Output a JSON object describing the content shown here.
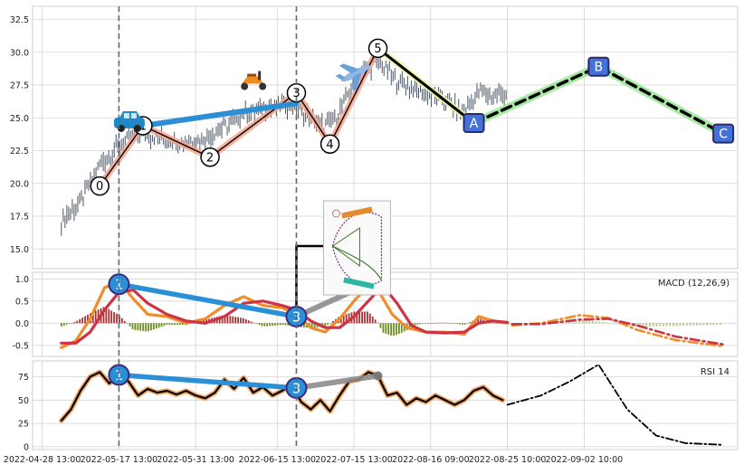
{
  "chart_data": [
    {
      "panel": "price",
      "type": "candlestick",
      "title": "",
      "ylim": [
        13.5,
        33.5
      ],
      "yticks": [
        "15.0",
        "17.5",
        "20.0",
        "22.5",
        "25.0",
        "27.5",
        "30.0",
        "32.5"
      ],
      "grid": true,
      "price_path": [
        {
          "d": 0,
          "v": 17.2
        },
        {
          "d": 4,
          "v": 18.5
        },
        {
          "d": 8,
          "v": 21.5
        },
        {
          "d": 12,
          "v": 22.8
        },
        {
          "d": 16,
          "v": 23.8
        },
        {
          "d": 22,
          "v": 23.3
        },
        {
          "d": 26,
          "v": 23.2
        },
        {
          "d": 30,
          "v": 23.5
        },
        {
          "d": 34,
          "v": 24.3
        },
        {
          "d": 38,
          "v": 25.3
        },
        {
          "d": 42,
          "v": 25.7
        },
        {
          "d": 48,
          "v": 26.0
        },
        {
          "d": 51,
          "v": 25.3
        },
        {
          "d": 54,
          "v": 24.3
        },
        {
          "d": 57,
          "v": 24.8
        },
        {
          "d": 60,
          "v": 27.0
        },
        {
          "d": 63,
          "v": 28.5
        },
        {
          "d": 66,
          "v": 29.3
        },
        {
          "d": 70,
          "v": 27.8
        },
        {
          "d": 75,
          "v": 27.0
        },
        {
          "d": 80,
          "v": 26.3
        },
        {
          "d": 84,
          "v": 25.4
        },
        {
          "d": 87,
          "v": 27.0
        },
        {
          "d": 90,
          "v": 26.7
        },
        {
          "d": 93,
          "v": 26.9
        }
      ],
      "elliott_wave": {
        "labels": [
          "0",
          "1",
          "2",
          "3",
          "4",
          "5"
        ],
        "points": [
          {
            "d": 8,
            "v": 19.8
          },
          {
            "d": 17,
            "v": 24.4
          },
          {
            "d": 31,
            "v": 22.0
          },
          {
            "d": 49,
            "v": 26.9
          },
          {
            "d": 56,
            "v": 23.0
          },
          {
            "d": 66,
            "v": 30.3
          }
        ]
      },
      "abc_projection": {
        "labels": [
          "A",
          "B",
          "C"
        ],
        "points": [
          {
            "d": 86,
            "v": 24.6
          },
          {
            "d": 112,
            "v": 28.9
          },
          {
            "d": 138,
            "v": 23.8
          }
        ]
      },
      "trend_line": [
        {
          "d": 17,
          "v": 24.4
        },
        {
          "d": 49,
          "v": 26.1
        }
      ],
      "icons": [
        "car-icon",
        "scooter-icon",
        "airplane-icon",
        "track-diagram-icon"
      ]
    },
    {
      "panel": "macd",
      "type": "line",
      "legend": "MACD (12,26,9)",
      "ylim": [
        -0.75,
        1.15
      ],
      "yticks": [
        "-0.5",
        "0.0",
        "0.5",
        "1.0"
      ],
      "divergence": {
        "labels": [
          "1",
          "3"
        ],
        "points": [
          {
            "d": 12,
            "v": 0.88
          },
          {
            "d": 49,
            "v": 0.15
          }
        ],
        "extension": [
          {
            "d": 49,
            "v": 0.15
          },
          {
            "d": 66,
            "v": 0.98
          }
        ]
      },
      "macd_line": [
        {
          "d": 0,
          "v": -0.55
        },
        {
          "d": 3,
          "v": -0.4
        },
        {
          "d": 6,
          "v": 0.1
        },
        {
          "d": 9,
          "v": 0.8
        },
        {
          "d": 12,
          "v": 0.95
        },
        {
          "d": 15,
          "v": 0.55
        },
        {
          "d": 18,
          "v": 0.2
        },
        {
          "d": 22,
          "v": 0.15
        },
        {
          "d": 26,
          "v": 0.0
        },
        {
          "d": 30,
          "v": 0.1
        },
        {
          "d": 34,
          "v": 0.4
        },
        {
          "d": 38,
          "v": 0.6
        },
        {
          "d": 42,
          "v": 0.4
        },
        {
          "d": 46,
          "v": 0.35
        },
        {
          "d": 49,
          "v": 0.2
        },
        {
          "d": 52,
          "v": -0.1
        },
        {
          "d": 55,
          "v": -0.2
        },
        {
          "d": 58,
          "v": 0.1
        },
        {
          "d": 61,
          "v": 0.5
        },
        {
          "d": 64,
          "v": 0.85
        },
        {
          "d": 66,
          "v": 0.75
        },
        {
          "d": 69,
          "v": 0.2
        },
        {
          "d": 72,
          "v": -0.1
        },
        {
          "d": 76,
          "v": -0.2
        },
        {
          "d": 80,
          "v": -0.2
        },
        {
          "d": 84,
          "v": -0.25
        },
        {
          "d": 87,
          "v": 0.15
        },
        {
          "d": 90,
          "v": 0.05
        },
        {
          "d": 93,
          "v": 0.0
        }
      ],
      "signal_line": [
        {
          "d": 0,
          "v": -0.45
        },
        {
          "d": 3,
          "v": -0.45
        },
        {
          "d": 6,
          "v": -0.2
        },
        {
          "d": 9,
          "v": 0.3
        },
        {
          "d": 12,
          "v": 0.7
        },
        {
          "d": 15,
          "v": 0.75
        },
        {
          "d": 18,
          "v": 0.45
        },
        {
          "d": 22,
          "v": 0.2
        },
        {
          "d": 26,
          "v": 0.05
        },
        {
          "d": 30,
          "v": 0.0
        },
        {
          "d": 34,
          "v": 0.15
        },
        {
          "d": 38,
          "v": 0.45
        },
        {
          "d": 42,
          "v": 0.5
        },
        {
          "d": 46,
          "v": 0.4
        },
        {
          "d": 49,
          "v": 0.3
        },
        {
          "d": 52,
          "v": 0.05
        },
        {
          "d": 55,
          "v": -0.1
        },
        {
          "d": 58,
          "v": -0.1
        },
        {
          "d": 61,
          "v": 0.15
        },
        {
          "d": 64,
          "v": 0.5
        },
        {
          "d": 67,
          "v": 0.85
        },
        {
          "d": 70,
          "v": 0.45
        },
        {
          "d": 73,
          "v": -0.05
        },
        {
          "d": 76,
          "v": -0.2
        },
        {
          "d": 80,
          "v": -0.22
        },
        {
          "d": 84,
          "v": -0.2
        },
        {
          "d": 87,
          "v": 0.0
        },
        {
          "d": 90,
          "v": 0.05
        },
        {
          "d": 93,
          "v": 0.02
        }
      ],
      "projection_macd": [
        {
          "d": 94,
          "v": -0.05
        },
        {
          "d": 100,
          "v": 0.0
        },
        {
          "d": 108,
          "v": 0.18
        },
        {
          "d": 114,
          "v": 0.12
        },
        {
          "d": 120,
          "v": -0.15
        },
        {
          "d": 128,
          "v": -0.38
        },
        {
          "d": 138,
          "v": -0.52
        }
      ],
      "projection_signal": [
        {
          "d": 94,
          "v": -0.02
        },
        {
          "d": 100,
          "v": -0.02
        },
        {
          "d": 108,
          "v": 0.08
        },
        {
          "d": 114,
          "v": 0.1
        },
        {
          "d": 120,
          "v": -0.05
        },
        {
          "d": 128,
          "v": -0.3
        },
        {
          "d": 138,
          "v": -0.48
        }
      ]
    },
    {
      "panel": "rsi",
      "type": "line",
      "legend": "RSI 14",
      "ylim": [
        -3,
        92
      ],
      "yticks": [
        "0",
        "25",
        "50",
        "75"
      ],
      "divergence": {
        "labels": [
          "1",
          "3"
        ],
        "points": [
          {
            "d": 12,
            "v": 77
          },
          {
            "d": 49,
            "v": 63
          }
        ],
        "extension": [
          {
            "d": 49,
            "v": 63
          },
          {
            "d": 66,
            "v": 76
          }
        ]
      },
      "rsi_line": [
        {
          "d": 0,
          "v": 28
        },
        {
          "d": 2,
          "v": 40
        },
        {
          "d": 4,
          "v": 60
        },
        {
          "d": 6,
          "v": 75
        },
        {
          "d": 8,
          "v": 80
        },
        {
          "d": 10,
          "v": 68
        },
        {
          "d": 12,
          "v": 78
        },
        {
          "d": 14,
          "v": 70
        },
        {
          "d": 16,
          "v": 55
        },
        {
          "d": 18,
          "v": 62
        },
        {
          "d": 20,
          "v": 58
        },
        {
          "d": 22,
          "v": 60
        },
        {
          "d": 24,
          "v": 56
        },
        {
          "d": 26,
          "v": 60
        },
        {
          "d": 28,
          "v": 55
        },
        {
          "d": 30,
          "v": 52
        },
        {
          "d": 32,
          "v": 58
        },
        {
          "d": 34,
          "v": 72
        },
        {
          "d": 36,
          "v": 62
        },
        {
          "d": 38,
          "v": 74
        },
        {
          "d": 40,
          "v": 58
        },
        {
          "d": 42,
          "v": 64
        },
        {
          "d": 44,
          "v": 55
        },
        {
          "d": 46,
          "v": 60
        },
        {
          "d": 48,
          "v": 66
        },
        {
          "d": 50,
          "v": 48
        },
        {
          "d": 52,
          "v": 40
        },
        {
          "d": 54,
          "v": 50
        },
        {
          "d": 56,
          "v": 38
        },
        {
          "d": 58,
          "v": 55
        },
        {
          "d": 60,
          "v": 70
        },
        {
          "d": 62,
          "v": 72
        },
        {
          "d": 64,
          "v": 80
        },
        {
          "d": 66,
          "v": 76
        },
        {
          "d": 68,
          "v": 55
        },
        {
          "d": 70,
          "v": 58
        },
        {
          "d": 72,
          "v": 45
        },
        {
          "d": 74,
          "v": 52
        },
        {
          "d": 76,
          "v": 48
        },
        {
          "d": 78,
          "v": 55
        },
        {
          "d": 80,
          "v": 50
        },
        {
          "d": 82,
          "v": 45
        },
        {
          "d": 84,
          "v": 50
        },
        {
          "d": 86,
          "v": 60
        },
        {
          "d": 88,
          "v": 64
        },
        {
          "d": 90,
          "v": 55
        },
        {
          "d": 92,
          "v": 50
        }
      ],
      "projection_rsi": [
        {
          "d": 93,
          "v": 45
        },
        {
          "d": 100,
          "v": 55
        },
        {
          "d": 106,
          "v": 70
        },
        {
          "d": 112,
          "v": 88
        },
        {
          "d": 118,
          "v": 40
        },
        {
          "d": 124,
          "v": 12
        },
        {
          "d": 130,
          "v": 4
        },
        {
          "d": 138,
          "v": 2
        }
      ]
    }
  ],
  "x_axis": {
    "ticks": [
      {
        "d": -4,
        "label": "2022-04-28 13:00"
      },
      {
        "d": 12,
        "label": "2022-05-17 13:00"
      },
      {
        "d": 28,
        "label": "2022-05-31 13:00"
      },
      {
        "d": 45,
        "label": "2022-06-15 13:00"
      },
      {
        "d": 61,
        "label": "2022-07-15 13:00"
      },
      {
        "d": 77,
        "label": "2022-08-16 09:00"
      },
      {
        "d": 93,
        "label": "2022-08-25 10:00"
      },
      {
        "d": 109,
        "label": "2022-09-02 10:00"
      }
    ],
    "vlines": [
      {
        "d": 12
      },
      {
        "d": 49
      }
    ]
  },
  "colors": {
    "grid": "#d3d3d3",
    "candle": "#4b5563",
    "wave_line": "#000000",
    "wave_glow": "#f4a48c",
    "trend": "#2a8fd6",
    "abc_line": "#000000",
    "abc_glow": "#9ee89a",
    "abc_box": "#4472d8",
    "macd": "#f28c28",
    "signal": "#cc3344",
    "hist_up": "#a83232",
    "hist_down": "#6b8e23",
    "rsi": "#000000",
    "rsi_glow": "#f4a460",
    "badge": "#2a8fd6",
    "vline": "#556b82"
  }
}
